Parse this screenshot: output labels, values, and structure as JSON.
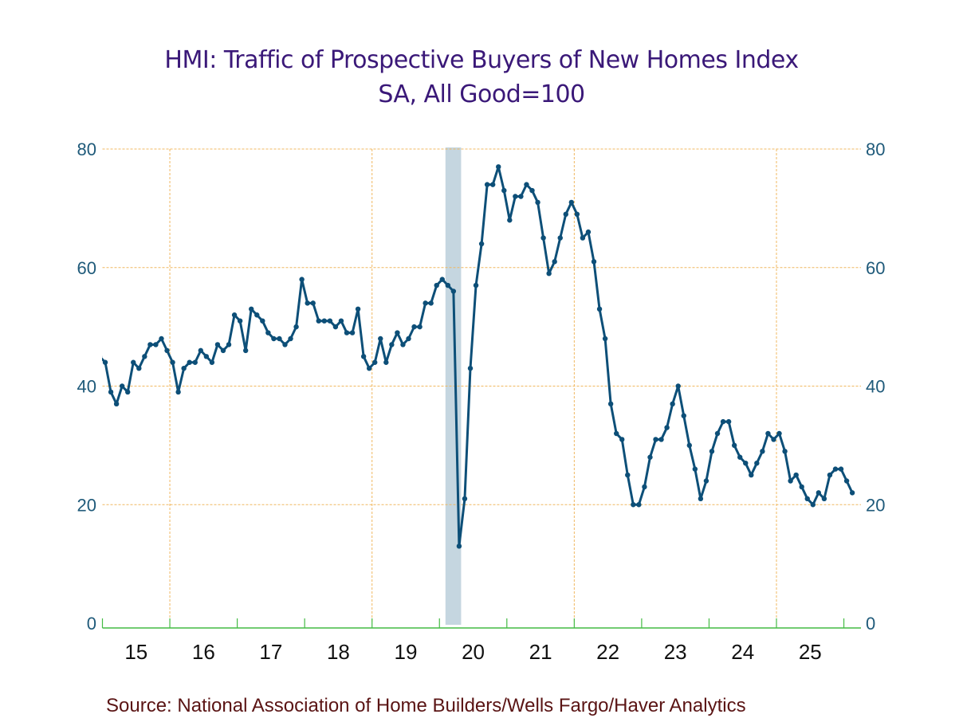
{
  "title_line1": "HMI: Traffic of Prospective Buyers of New Homes Index",
  "title_line2": "SA, All Good=100",
  "source": "Source:  National Association of Home Builders/Wells Fargo/Haver Analytics",
  "colors": {
    "title": "#3a1878",
    "series": "#0d4f78",
    "grid": "#f0b860",
    "axis": "#44bb44",
    "recession": "#c5d6e0",
    "ytick": "#1f5a7a",
    "source": "#5a1414"
  },
  "chart_data": {
    "type": "line",
    "title": "HMI: Traffic of Prospective Buyers of New Homes Index",
    "subtitle": "SA, All Good=100",
    "xlabel": "",
    "ylabel": "",
    "frequency": "monthly",
    "start": "2014-12",
    "xlim": [
      "2015-01",
      "2026-04"
    ],
    "ylim": [
      0,
      80
    ],
    "yticks": [
      0,
      20,
      40,
      60,
      80
    ],
    "ytick_labels": [
      "0",
      "20",
      "40",
      "60",
      "80"
    ],
    "xtick_labels": [
      "15",
      "16",
      "17",
      "18",
      "19",
      "20",
      "21",
      "22",
      "23",
      "24",
      "25"
    ],
    "vertical_gridlines_at_years": [
      "2016",
      "2019",
      "2022",
      "2025"
    ],
    "grid": true,
    "legend": "none",
    "recession_shading": [
      {
        "start": "2020-02",
        "end": "2020-04"
      }
    ],
    "series": [
      {
        "name": "Traffic of Prospective Buyers Index",
        "values": [
          45,
          44,
          39,
          37,
          40,
          39,
          44,
          43,
          45,
          47,
          47,
          48,
          46,
          44,
          39,
          43,
          44,
          44,
          46,
          45,
          44,
          47,
          46,
          47,
          52,
          51,
          46,
          53,
          52,
          51,
          49,
          48,
          48,
          47,
          48,
          50,
          58,
          54,
          54,
          51,
          51,
          51,
          50,
          51,
          49,
          49,
          53,
          45,
          43,
          44,
          48,
          44,
          47,
          49,
          47,
          48,
          50,
          50,
          54,
          54,
          57,
          58,
          57,
          56,
          13,
          21,
          43,
          57,
          64,
          74,
          74,
          77,
          73,
          68,
          72,
          72,
          74,
          73,
          71,
          65,
          59,
          61,
          65,
          69,
          71,
          69,
          65,
          66,
          61,
          53,
          48,
          37,
          32,
          31,
          25,
          20,
          20,
          23,
          28,
          31,
          31,
          33,
          37,
          40,
          35,
          30,
          26,
          21,
          24,
          29,
          32,
          34,
          34,
          30,
          28,
          27,
          25,
          27,
          29,
          32,
          31,
          32,
          29,
          24,
          25,
          23,
          21,
          20,
          22,
          21,
          25,
          26,
          26,
          24,
          22
        ]
      }
    ]
  }
}
